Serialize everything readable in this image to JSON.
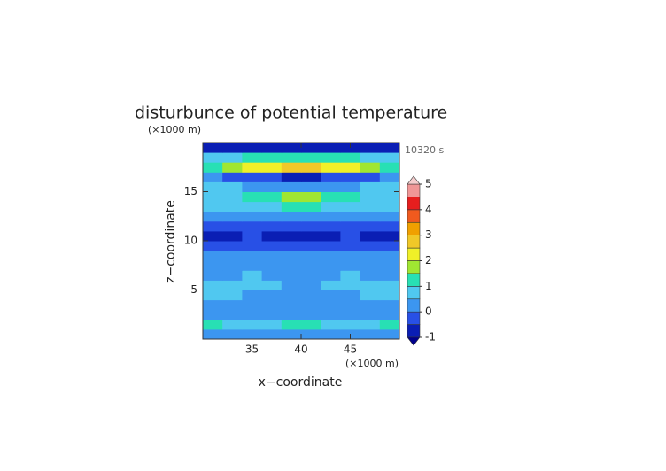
{
  "chart_data": {
    "type": "heatmap",
    "title": "disturbunce of potential temperature",
    "y_unit": "(×1000 m)",
    "x_unit": "(×1000 m)",
    "time_label": "10320 s",
    "xlabel": "x−coordinate",
    "ylabel": "z−coordinate",
    "xlim": [
      30,
      50
    ],
    "ylim": [
      0,
      20
    ],
    "xticks": [
      35,
      40,
      45
    ],
    "yticks": [
      5,
      10,
      15
    ],
    "x": [
      31,
      33,
      35,
      37,
      39,
      41,
      43,
      45,
      47,
      49
    ],
    "y": [
      0.5,
      1.5,
      2.5,
      3.5,
      4.5,
      5.5,
      6.5,
      7.5,
      8.5,
      9.5,
      10.5,
      11.5,
      12.5,
      13.5,
      14.5,
      15.5,
      16.5,
      17.5,
      18.5,
      19.5
    ],
    "values": [
      [
        0.2,
        0.2,
        0.2,
        0.2,
        0.2,
        0.2,
        0.2,
        0.2,
        0.2,
        0.2
      ],
      [
        1.1,
        0.7,
        0.6,
        0.8,
        1.2,
        1.2,
        0.8,
        0.6,
        0.7,
        1.1
      ],
      [
        0.3,
        0.3,
        0.3,
        0.4,
        0.4,
        0.4,
        0.4,
        0.3,
        0.3,
        0.3
      ],
      [
        0.1,
        0.1,
        0.2,
        0.1,
        0.1,
        0.1,
        0.1,
        0.2,
        0.1,
        0.1
      ],
      [
        0.7,
        0.6,
        0.3,
        0.3,
        0.2,
        0.2,
        0.3,
        0.3,
        0.6,
        0.7
      ],
      [
        0.9,
        0.8,
        0.6,
        0.6,
        0.4,
        0.4,
        0.6,
        0.6,
        0.8,
        0.9
      ],
      [
        0.4,
        0.4,
        0.6,
        0.4,
        0.3,
        0.3,
        0.4,
        0.6,
        0.4,
        0.4
      ],
      [
        0.2,
        0.2,
        0.3,
        0.2,
        0.2,
        0.2,
        0.2,
        0.3,
        0.2,
        0.2
      ],
      [
        0.1,
        0.1,
        0.1,
        0.1,
        0.1,
        0.1,
        0.1,
        0.1,
        0.1,
        0.1
      ],
      [
        -0.2,
        -0.3,
        -0.2,
        -0.2,
        -0.2,
        -0.2,
        -0.2,
        -0.2,
        -0.3,
        -0.2
      ],
      [
        -0.6,
        -0.6,
        -0.5,
        -0.6,
        -0.7,
        -0.7,
        -0.6,
        -0.5,
        -0.6,
        -0.6
      ],
      [
        -0.3,
        -0.4,
        -0.5,
        -0.5,
        -0.5,
        -0.5,
        -0.5,
        -0.5,
        -0.4,
        -0.3
      ],
      [
        0.1,
        0.2,
        0.0,
        0.0,
        0.1,
        0.1,
        0.0,
        0.0,
        0.2,
        0.1
      ],
      [
        0.6,
        0.6,
        0.7,
        0.9,
        1.3,
        1.3,
        0.9,
        0.7,
        0.6,
        0.6
      ],
      [
        0.9,
        0.8,
        1.1,
        1.3,
        1.6,
        1.6,
        1.3,
        1.1,
        0.8,
        0.9
      ],
      [
        0.8,
        0.6,
        0.3,
        0.2,
        0.2,
        0.2,
        0.2,
        0.3,
        0.6,
        0.8
      ],
      [
        0.2,
        -0.2,
        -0.3,
        -0.5,
        -0.6,
        -0.6,
        -0.5,
        -0.3,
        -0.2,
        0.2
      ],
      [
        1.3,
        1.6,
        2.1,
        2.4,
        2.7,
        2.7,
        2.4,
        2.1,
        1.6,
        1.3
      ],
      [
        0.6,
        0.8,
        1.0,
        1.1,
        1.2,
        1.2,
        1.1,
        1.0,
        0.8,
        0.6
      ],
      [
        -0.7,
        -0.7,
        -0.7,
        -0.7,
        -0.7,
        -0.7,
        -0.7,
        -0.7,
        -0.7,
        -0.7
      ]
    ],
    "colorbar": {
      "levels": [
        -1,
        -0.5,
        0,
        0.5,
        1,
        1.5,
        2,
        2.5,
        3,
        3.5,
        4,
        4.5,
        5
      ],
      "colors": [
        "#0a1eb4",
        "#2850e6",
        "#3c96f0",
        "#50c8f0",
        "#28e0b4",
        "#a0e632",
        "#f0f028",
        "#f0c828",
        "#f0a000",
        "#f05a1e",
        "#e61e1e",
        "#f09696"
      ],
      "under_color": "#00008c",
      "over_color": "#f5cccc",
      "ticks": [
        -1,
        0,
        1,
        2,
        3,
        4,
        5
      ]
    }
  }
}
